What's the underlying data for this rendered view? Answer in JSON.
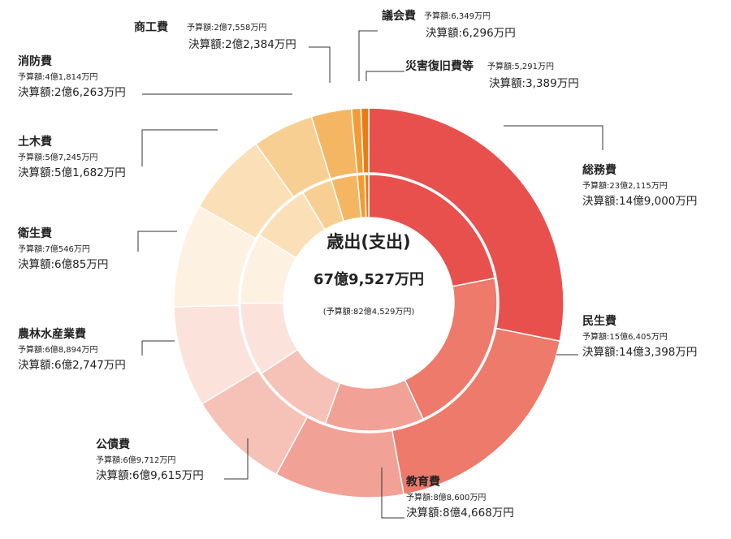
{
  "chart_data": {
    "type": "pie",
    "variant": "double-ring-donut",
    "title": "歳出(支出)",
    "total_settlement": "67億9,527万円",
    "total_budget": "(予算額:82億4,529万円)",
    "budget_prefix": "予算額:",
    "settlement_prefix": "決算額:",
    "rings": {
      "outer": "予算額",
      "inner": "決算額"
    },
    "units": "万円",
    "categories": [
      {
        "name": "総務費",
        "budget_label": "23億2,115万円",
        "settlement_label": "14億9,000万円",
        "budget": 232115,
        "settlement": 149000,
        "color": "#e8504e"
      },
      {
        "name": "民生費",
        "budget_label": "15億6,405万円",
        "settlement_label": "14億3,398万円",
        "budget": 156405,
        "settlement": 143398,
        "color": "#ed7a6a"
      },
      {
        "name": "教育費",
        "budget_label": "8億8,600万円",
        "settlement_label": "8億4,668万円",
        "budget": 88600,
        "settlement": 84668,
        "color": "#f2a196"
      },
      {
        "name": "公債費",
        "budget_label": "6億9,712万円",
        "settlement_label": "6億9,615万円",
        "budget": 69712,
        "settlement": 69615,
        "color": "#f6c1b6"
      },
      {
        "name": "農林水産業費",
        "budget_label": "6億8,894万円",
        "settlement_label": "6億2,747万円",
        "budget": 68894,
        "settlement": 62747,
        "color": "#fbe3dc"
      },
      {
        "name": "衛生費",
        "budget_label": "7億546万円",
        "settlement_label": "6億85万円",
        "budget": 70546,
        "settlement": 60085,
        "color": "#fdf1e1"
      },
      {
        "name": "土木費",
        "budget_label": "5億7,245万円",
        "settlement_label": "5億1,682万円",
        "budget": 57245,
        "settlement": 51682,
        "color": "#fbe0b7"
      },
      {
        "name": "消防費",
        "budget_label": "4億1,814万円",
        "settlement_label": "2億6,263万円",
        "budget": 41814,
        "settlement": 26263,
        "color": "#f8cf92"
      },
      {
        "name": "商工費",
        "budget_label": "2億7,558万円",
        "settlement_label": "2億2,384万円",
        "budget": 27558,
        "settlement": 22384,
        "color": "#f5b664"
      },
      {
        "name": "議会費",
        "budget_label": "6,349万円",
        "settlement_label": "6,296万円",
        "budget": 6349,
        "settlement": 6296,
        "color": "#f29c33"
      },
      {
        "name": "災害復旧費等",
        "budget_label": "5,291万円",
        "settlement_label": "3,389万円",
        "budget": 5291,
        "settlement": 3389,
        "color": "#e97d12"
      }
    ]
  }
}
